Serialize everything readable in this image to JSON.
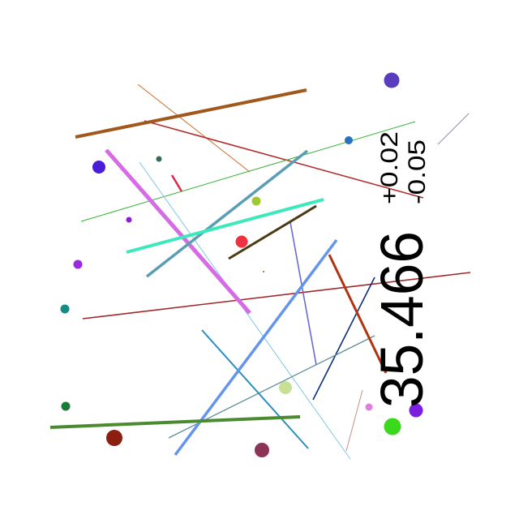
{
  "readout": {
    "value": "35.466",
    "delta_upper": "+0.02",
    "delta_lower": "-0.05"
  },
  "colors": {
    "background": "#ffffff",
    "text": "#000000",
    "lines": [
      "#a0581c",
      "#d06a28",
      "#b03030",
      "#33b233",
      "#8c8cc8",
      "#d66be6",
      "#7ec8e3",
      "#5a9eb4",
      "#3de8bc",
      "#4b3a14",
      "#6a6ad6",
      "#b03410",
      "#0c2e7a",
      "#a02828",
      "#2a90c0",
      "#6495ed",
      "#5a8c96",
      "#4a8a30",
      "#c88c8c",
      "#e02848"
    ],
    "dots": [
      "#5a3cbe",
      "#2a70c0",
      "#4a1ed6",
      "#386858",
      "#a0c832",
      "#8a1ed6",
      "#f03040",
      "#9a2ae0",
      "#148c84",
      "#c8e096",
      "#1a7a38",
      "#8a1e10",
      "#8c3458",
      "#e07ee0",
      "#7a1ee0",
      "#3cd81e"
    ]
  }
}
